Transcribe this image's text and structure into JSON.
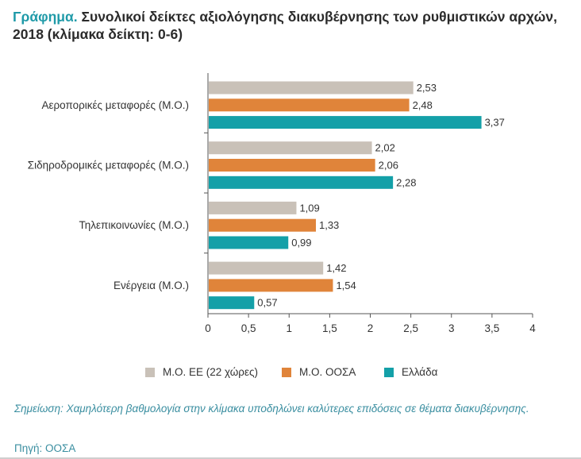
{
  "title": {
    "prefix": "Γράφημα.",
    "text": " Συνολικοί δείκτες αξιολόγησης διακυβέρνησης των ρυθμιστικών αρχών, 2018 (κλίμακα δείκτη: 0-6)"
  },
  "note": {
    "label": "Σημείωση:",
    "text": " Χαμηλότερη βαθμολογία στην κλίμακα υποδηλώνει καλύτερες επιδόσεις σε θέματα διακυβέρνησης."
  },
  "source": {
    "text": "Πηγή: ΟΟΣΑ"
  },
  "colors": {
    "title_accent": "#1f9aa8",
    "eu": "#c9c1b8",
    "oecd": "#e0843a",
    "greece": "#14a0a8",
    "axis": "#555555"
  },
  "chart_data": {
    "type": "bar",
    "orientation": "horizontal",
    "categories": [
      "Αεροπορικές μεταφορές (Μ.Ο.)",
      "Σιδηροδρομικές μεταφορές (Μ.Ο.)",
      "Τηλεπικοινωνίες (Μ.Ο.)",
      "Ενέργεια (Μ.Ο.)"
    ],
    "series": [
      {
        "name": "Μ.Ο. ΕΕ (22 χώρες)",
        "color": "#c9c1b8",
        "values": [
          2.53,
          2.02,
          1.09,
          1.42
        ],
        "labels": [
          "2,53",
          "2,02",
          "1,09",
          "1,42"
        ]
      },
      {
        "name": "Μ.Ο. ΟΟΣΑ",
        "color": "#e0843a",
        "values": [
          2.48,
          2.06,
          1.33,
          1.54
        ],
        "labels": [
          "2,48",
          "2,06",
          "1,33",
          "1,54"
        ]
      },
      {
        "name": "Ελλάδα",
        "color": "#14a0a8",
        "values": [
          3.37,
          2.28,
          0.99,
          0.57
        ],
        "labels": [
          "3,37",
          "2,28",
          "0,99",
          "0,57"
        ]
      }
    ],
    "xlim": [
      0,
      4
    ],
    "xticks": [
      0,
      0.5,
      1,
      1.5,
      2,
      2.5,
      3,
      3.5,
      4
    ],
    "xtick_labels": [
      "0",
      "0,5",
      "1",
      "1,5",
      "2",
      "2,5",
      "3",
      "3,5",
      "4"
    ],
    "grid": false,
    "legend_position": "bottom"
  }
}
